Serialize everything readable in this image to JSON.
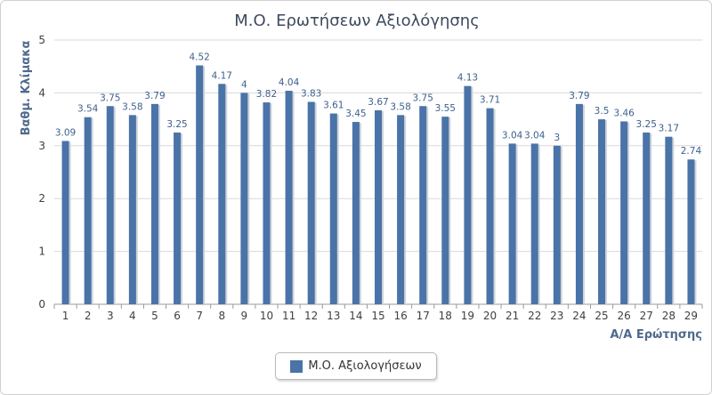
{
  "chart_data": {
    "type": "bar",
    "title": "Μ.Ο. Ερωτήσεων Αξιολόγησης",
    "xlabel": "Α/Α Ερώτησης",
    "ylabel": "Βαθμ. Κλίμακα",
    "ylim": [
      0,
      5
    ],
    "yticks": [
      "0",
      "1",
      "2",
      "3",
      "4",
      "5"
    ],
    "grid": true,
    "legend_position": "bottom",
    "categories": [
      "1",
      "2",
      "3",
      "4",
      "5",
      "6",
      "7",
      "8",
      "9",
      "10",
      "11",
      "12",
      "13",
      "14",
      "15",
      "16",
      "17",
      "18",
      "19",
      "20",
      "21",
      "22",
      "23",
      "24",
      "25",
      "26",
      "27",
      "28",
      "29"
    ],
    "series": [
      {
        "name": "Μ.Ο. Αξιολογήσεων",
        "color": "#4a73a8",
        "values": [
          3.09,
          3.54,
          3.75,
          3.58,
          3.79,
          3.25,
          4.52,
          4.17,
          4,
          3.82,
          4.04,
          3.83,
          3.61,
          3.45,
          3.67,
          3.58,
          3.75,
          3.55,
          4.13,
          3.71,
          3.04,
          3.04,
          3,
          3.79,
          3.5,
          3.46,
          3.25,
          3.17,
          2.74
        ]
      }
    ]
  }
}
